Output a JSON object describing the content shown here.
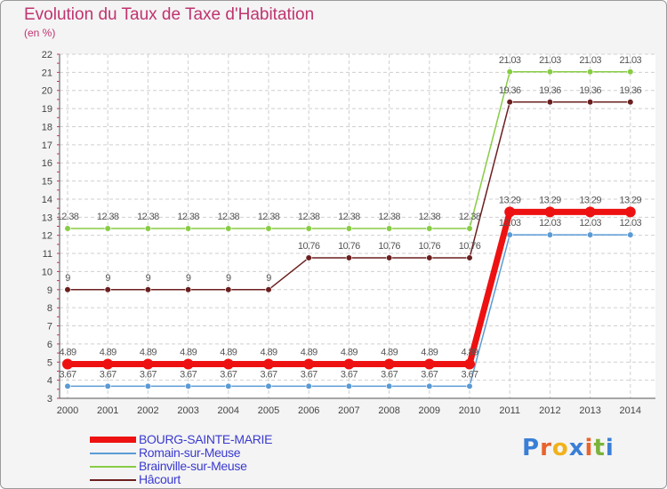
{
  "header": {
    "title": "Evolution du Taux de Taxe d'Habitation",
    "subtitle": "(en %)"
  },
  "logo": {
    "text": "Proxiti"
  },
  "chart_data": {
    "type": "line",
    "title": "Evolution du Taux de Taxe d'Habitation",
    "subtitle": "(en %)",
    "xlabel": "",
    "ylabel": "(en %)",
    "x": [
      2000,
      2001,
      2002,
      2003,
      2004,
      2005,
      2006,
      2007,
      2008,
      2009,
      2010,
      2011,
      2012,
      2013,
      2014
    ],
    "ylim": [
      3,
      22
    ],
    "yticks": [
      3,
      4,
      5,
      6,
      7,
      8,
      9,
      10,
      11,
      12,
      13,
      14,
      15,
      16,
      17,
      18,
      19,
      20,
      21,
      22
    ],
    "grid": "horizontal-dashed",
    "legend_position": "bottom-left",
    "series": [
      {
        "name": "BOURG-SAINTE-MARIE",
        "color": "#ee1111",
        "emphasis": true,
        "values": [
          4.89,
          4.89,
          4.89,
          4.89,
          4.89,
          4.89,
          4.89,
          4.89,
          4.89,
          4.89,
          4.89,
          13.29,
          13.29,
          13.29,
          13.29
        ],
        "labels": [
          "4.89",
          "4.89",
          "4.89",
          "4.89",
          "4.89",
          "4.89",
          "4.89",
          "4.89",
          "4.89",
          "4.89",
          "4.89",
          "13.29",
          "13.29",
          "13.29",
          "13.29"
        ]
      },
      {
        "name": "Romain-sur-Meuse",
        "color": "#5b9bd5",
        "emphasis": false,
        "values": [
          3.67,
          3.67,
          3.67,
          3.67,
          3.67,
          3.67,
          3.67,
          3.67,
          3.67,
          3.67,
          3.67,
          12.03,
          12.03,
          12.03,
          12.03
        ],
        "labels": [
          "3.67",
          "3.67",
          "3.67",
          "3.67",
          "3.67",
          "3.67",
          "3.67",
          "3.67",
          "3.67",
          "3.67",
          "3.67",
          "12.03",
          "12.03",
          "12.03",
          "12.03"
        ]
      },
      {
        "name": "Brainville-sur-Meuse",
        "color": "#88cc44",
        "emphasis": false,
        "values": [
          12.38,
          12.38,
          12.38,
          12.38,
          12.38,
          12.38,
          12.38,
          12.38,
          12.38,
          12.38,
          12.38,
          21.03,
          21.03,
          21.03,
          21.03
        ],
        "labels": [
          "12.38",
          "12.38",
          "12.38",
          "12.38",
          "12.38",
          "12.38",
          "12.38",
          "12.38",
          "12.38",
          "12.38",
          "12.38",
          "21.03",
          "21.03",
          "21.03",
          "21.03"
        ]
      },
      {
        "name": "Hâcourt",
        "color": "#6b1f1f",
        "emphasis": false,
        "values": [
          9,
          9,
          9,
          9,
          9,
          9,
          10.76,
          10.76,
          10.76,
          10.76,
          10.76,
          19.36,
          19.36,
          19.36,
          19.36
        ],
        "labels": [
          "9",
          "9",
          "9",
          "9",
          "9",
          "9",
          "10.76",
          "10.76",
          "10.76",
          "10.76",
          "10.76",
          "19.36",
          "19.36",
          "19.36",
          "19.36"
        ]
      }
    ]
  }
}
